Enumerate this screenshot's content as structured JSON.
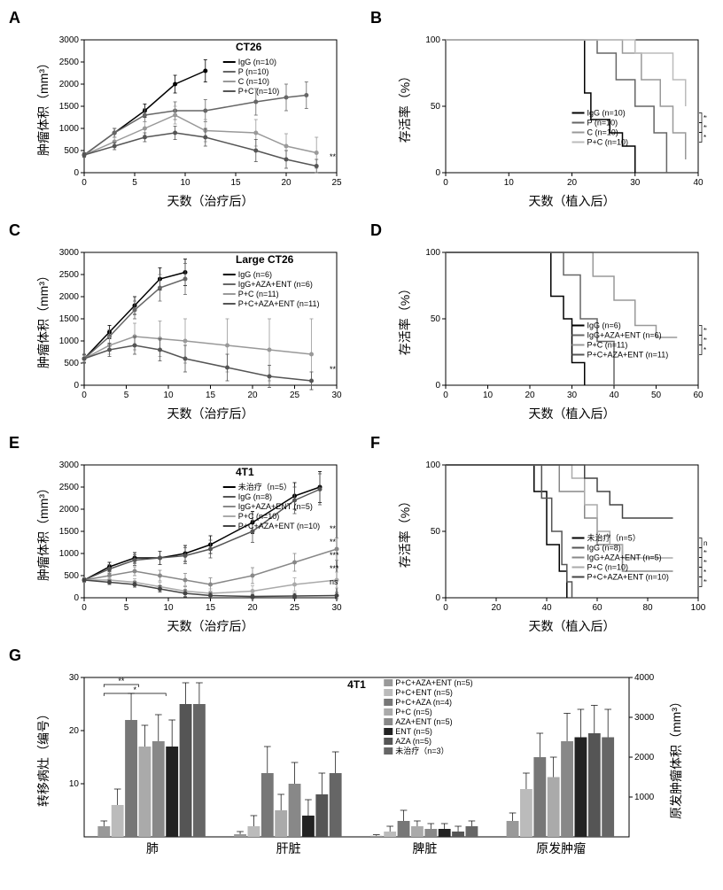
{
  "panels": {
    "A": {
      "label": "A",
      "title": "CT26",
      "type": "line",
      "xlabel": "天数（治疗后）",
      "ylabel": "肿瘤体积（mm³）",
      "xlim": [
        0,
        25
      ],
      "xtick_step": 5,
      "ylim": [
        0,
        3000
      ],
      "ytick_step": 500,
      "series": [
        {
          "name": "IgG (n=10)",
          "color": "#000000",
          "x": [
            0,
            3,
            6,
            9,
            12
          ],
          "y": [
            400,
            900,
            1400,
            2000,
            2300
          ],
          "err": [
            50,
            100,
            150,
            200,
            250
          ]
        },
        {
          "name": "P (n=10)",
          "color": "#666666",
          "x": [
            0,
            3,
            6,
            9,
            12,
            17,
            20,
            22
          ],
          "y": [
            400,
            900,
            1300,
            1400,
            1400,
            1600,
            1700,
            1750
          ],
          "err": [
            50,
            100,
            150,
            200,
            250,
            300,
            300,
            300
          ]
        },
        {
          "name": "C (n=10)",
          "color": "#999999",
          "x": [
            0,
            3,
            6,
            9,
            12,
            17,
            20,
            23
          ],
          "y": [
            400,
            700,
            1000,
            1300,
            950,
            900,
            600,
            450
          ],
          "err": [
            50,
            100,
            150,
            200,
            250,
            300,
            280,
            350
          ]
        },
        {
          "name": "P+C (n=10)",
          "color": "#555555",
          "x": [
            0,
            3,
            6,
            9,
            12,
            17,
            20,
            23
          ],
          "y": [
            400,
            600,
            800,
            900,
            800,
            500,
            300,
            150
          ],
          "err": [
            50,
            80,
            100,
            150,
            200,
            250,
            200,
            150
          ]
        }
      ],
      "sig_marks": [
        "**"
      ]
    },
    "B": {
      "label": "B",
      "type": "survival",
      "xlabel": "天数（植入后）",
      "ylabel": "存活率（%）",
      "xlim": [
        0,
        40
      ],
      "xtick_step": 10,
      "ylim": [
        0,
        100
      ],
      "ytick_step": 50,
      "series": [
        {
          "name": "IgG (n=10)",
          "color": "#000000",
          "steps": [
            [
              0,
              100
            ],
            [
              18,
              100
            ],
            [
              22,
              60
            ],
            [
              23,
              40
            ],
            [
              26,
              30
            ],
            [
              28,
              20
            ],
            [
              30,
              0
            ]
          ]
        },
        {
          "name": "P (n=10)",
          "color": "#666666",
          "steps": [
            [
              0,
              100
            ],
            [
              20,
              100
            ],
            [
              24,
              90
            ],
            [
              27,
              70
            ],
            [
              30,
              50
            ],
            [
              33,
              30
            ],
            [
              35,
              0
            ]
          ]
        },
        {
          "name": "C (n=10)",
          "color": "#999999",
          "steps": [
            [
              0,
              100
            ],
            [
              26,
              100
            ],
            [
              28,
              90
            ],
            [
              31,
              70
            ],
            [
              34,
              50
            ],
            [
              36,
              30
            ],
            [
              38,
              10
            ]
          ]
        },
        {
          "name": "P+C (n=10)",
          "color": "#bbbbbb",
          "steps": [
            [
              0,
              100
            ],
            [
              28,
              100
            ],
            [
              30,
              90
            ],
            [
              34,
              90
            ],
            [
              36,
              70
            ],
            [
              38,
              50
            ]
          ]
        }
      ],
      "sig_marks": [
        "***",
        "***",
        "*"
      ]
    },
    "C": {
      "label": "C",
      "title": "Large CT26",
      "type": "line",
      "xlabel": "天数（治疗后）",
      "ylabel": "肿瘤体积（mm³）",
      "xlim": [
        0,
        30
      ],
      "xtick_step": 5,
      "ylim": [
        0,
        3000
      ],
      "ytick_step": 500,
      "series": [
        {
          "name": "IgG (n=6)",
          "color": "#000000",
          "x": [
            0,
            3,
            6,
            9,
            12
          ],
          "y": [
            600,
            1200,
            1800,
            2400,
            2550
          ],
          "err": [
            100,
            150,
            200,
            250,
            300
          ]
        },
        {
          "name": "IgG+AZA+ENT (n=6)",
          "color": "#666666",
          "x": [
            0,
            3,
            6,
            9,
            12
          ],
          "y": [
            600,
            1100,
            1700,
            2200,
            2400
          ],
          "err": [
            100,
            150,
            200,
            300,
            350
          ]
        },
        {
          "name": "P+C (n=11)",
          "color": "#999999",
          "x": [
            0,
            3,
            6,
            9,
            12,
            17,
            22,
            27
          ],
          "y": [
            600,
            900,
            1100,
            1050,
            1000,
            900,
            800,
            700
          ],
          "err": [
            80,
            200,
            300,
            400,
            500,
            600,
            700,
            800
          ]
        },
        {
          "name": "P+C+AZA+ENT (n=11)",
          "color": "#555555",
          "x": [
            0,
            3,
            6,
            9,
            12,
            17,
            22,
            27
          ],
          "y": [
            600,
            800,
            900,
            800,
            600,
            400,
            200,
            100
          ],
          "err": [
            80,
            150,
            200,
            250,
            300,
            300,
            250,
            200
          ]
        }
      ],
      "sig_marks": [
        "**"
      ]
    },
    "D": {
      "label": "D",
      "type": "survival",
      "xlabel": "天数（植入后）",
      "ylabel": "存活率（%）",
      "xlim": [
        0,
        60
      ],
      "xtick_step": 10,
      "ylim": [
        0,
        100
      ],
      "ytick_step": 50,
      "series": [
        {
          "name": "IgG (n=6)",
          "color": "#000000",
          "steps": [
            [
              0,
              100
            ],
            [
              20,
              100
            ],
            [
              25,
              67
            ],
            [
              28,
              50
            ],
            [
              30,
              17
            ],
            [
              33,
              0
            ]
          ]
        },
        {
          "name": "IgG+AZA+ENT (n=6)",
          "color": "#666666",
          "steps": [
            [
              0,
              100
            ],
            [
              22,
              100
            ],
            [
              28,
              83
            ],
            [
              32,
              50
            ],
            [
              36,
              33
            ],
            [
              40,
              0
            ]
          ]
        },
        {
          "name": "P+C (n=11)",
          "color": "#999999",
          "steps": [
            [
              0,
              100
            ],
            [
              30,
              100
            ],
            [
              35,
              82
            ],
            [
              40,
              64
            ],
            [
              45,
              45
            ],
            [
              50,
              36
            ],
            [
              55,
              36
            ]
          ]
        },
        {
          "name": "P+C+AZA+ENT (n=11)",
          "color": "#555555",
          "steps": [
            [
              0,
              100
            ],
            [
              55,
              100
            ]
          ]
        }
      ],
      "sig_marks": [
        "***",
        "***",
        "*"
      ]
    },
    "E": {
      "label": "E",
      "title": "4T1",
      "type": "line",
      "xlabel": "天数（治疗后）",
      "ylabel": "肿瘤体积（mm³）",
      "xlim": [
        0,
        30
      ],
      "xtick_step": 5,
      "ylim": [
        0,
        3000
      ],
      "ytick_step": 500,
      "series": [
        {
          "name": "未治疗（n=5）",
          "color": "#000000",
          "x": [
            0,
            3,
            6,
            9,
            12,
            15,
            20,
            25,
            28
          ],
          "y": [
            400,
            700,
            900,
            900,
            1000,
            1200,
            1700,
            2300,
            2500
          ],
          "err": [
            50,
            100,
            120,
            150,
            180,
            200,
            250,
            300,
            350
          ]
        },
        {
          "name": "IgG (n=8)",
          "color": "#555555",
          "x": [
            0,
            3,
            6,
            9,
            12,
            15,
            20,
            25,
            28
          ],
          "y": [
            400,
            650,
            850,
            900,
            950,
            1100,
            1500,
            2200,
            2450
          ],
          "err": [
            50,
            100,
            120,
            150,
            180,
            200,
            250,
            300,
            350
          ]
        },
        {
          "name": "IgG+AZA+ENT (n=5)",
          "color": "#888888",
          "x": [
            0,
            3,
            6,
            9,
            12,
            15,
            20,
            25,
            30
          ],
          "y": [
            400,
            500,
            600,
            500,
            400,
            300,
            500,
            800,
            1100
          ],
          "err": [
            50,
            80,
            100,
            120,
            150,
            150,
            180,
            200,
            250
          ]
        },
        {
          "name": "P+C (n=10)",
          "color": "#aaaaaa",
          "x": [
            0,
            3,
            6,
            9,
            12,
            15,
            20,
            25,
            30
          ],
          "y": [
            400,
            400,
            350,
            250,
            150,
            100,
            150,
            300,
            400
          ],
          "err": [
            50,
            60,
            80,
            100,
            120,
            100,
            120,
            150,
            180
          ]
        },
        {
          "name": "P+C+AZA+ENT (n=10)",
          "color": "#444444",
          "x": [
            0,
            3,
            6,
            9,
            12,
            15,
            20,
            25,
            30
          ],
          "y": [
            400,
            350,
            300,
            200,
            100,
            50,
            30,
            40,
            50
          ],
          "err": [
            40,
            50,
            60,
            70,
            80,
            60,
            50,
            60,
            70
          ]
        }
      ],
      "sig_marks": [
        "ns",
        "***",
        "***",
        "**",
        "**"
      ]
    },
    "F": {
      "label": "F",
      "type": "survival",
      "xlabel": "天数（植入后）",
      "ylabel": "存活率（%）",
      "xlim": [
        0,
        100
      ],
      "xtick_step": 20,
      "ylim": [
        0,
        100
      ],
      "ytick_step": 50,
      "series": [
        {
          "name": "未治疗（n=5）",
          "color": "#000000",
          "steps": [
            [
              0,
              100
            ],
            [
              30,
              100
            ],
            [
              35,
              80
            ],
            [
              40,
              40
            ],
            [
              45,
              20
            ],
            [
              48,
              0
            ]
          ]
        },
        {
          "name": "IgG (n=8)",
          "color": "#555555",
          "steps": [
            [
              0,
              100
            ],
            [
              32,
              100
            ],
            [
              38,
              75
            ],
            [
              42,
              50
            ],
            [
              46,
              25
            ],
            [
              48,
              12
            ],
            [
              50,
              0
            ]
          ]
        },
        {
          "name": "IgG+AZA+ENT (n=5)",
          "color": "#888888",
          "steps": [
            [
              0,
              100
            ],
            [
              40,
              100
            ],
            [
              45,
              80
            ],
            [
              55,
              60
            ],
            [
              60,
              40
            ],
            [
              65,
              40
            ],
            [
              70,
              20
            ],
            [
              90,
              20
            ]
          ]
        },
        {
          "name": "P+C (n=10)",
          "color": "#aaaaaa",
          "steps": [
            [
              0,
              100
            ],
            [
              42,
              100
            ],
            [
              50,
              90
            ],
            [
              55,
              70
            ],
            [
              60,
              50
            ],
            [
              65,
              40
            ],
            [
              70,
              30
            ],
            [
              90,
              30
            ]
          ]
        },
        {
          "name": "P+C+AZA+ENT (n=10)",
          "color": "#444444",
          "steps": [
            [
              0,
              100
            ],
            [
              50,
              100
            ],
            [
              55,
              90
            ],
            [
              60,
              80
            ],
            [
              65,
              70
            ],
            [
              70,
              60
            ],
            [
              90,
              60
            ]
          ]
        }
      ],
      "sig_marks": [
        "ns",
        "***",
        "***",
        "*",
        "***"
      ]
    },
    "G": {
      "label": "G",
      "title": "4T1",
      "type": "grouped-bar",
      "xlabel": "",
      "ylabel_left": "转移病灶（编号）",
      "ylabel_right": "原发肿瘤体积（mm³）",
      "ylim_left": [
        0,
        30
      ],
      "ytick_left": [
        10,
        20,
        30
      ],
      "ylim_right": [
        0,
        4000
      ],
      "ytick_right": [
        1000,
        2000,
        3000,
        4000
      ],
      "categories": [
        "肺",
        "肝脏",
        "脾脏",
        "原发肿瘤"
      ],
      "groups": [
        {
          "name": "P+C+AZA+ENT (n=5)",
          "color": "#999999",
          "vals": [
            2,
            0.5,
            0.2,
            400
          ]
        },
        {
          "name": "P+C+ENT (n=5)",
          "color": "#bbbbbb",
          "vals": [
            6,
            2,
            1,
            1200
          ]
        },
        {
          "name": "P+C+AZA (n=4)",
          "color": "#777777",
          "vals": [
            22,
            12,
            3,
            2000
          ]
        },
        {
          "name": "P+C (n=5)",
          "color": "#aaaaaa",
          "vals": [
            17,
            5,
            2,
            1500
          ]
        },
        {
          "name": "AZA+ENT (n=5)",
          "color": "#888888",
          "vals": [
            18,
            10,
            1.5,
            2400
          ]
        },
        {
          "name": "ENT (n=5)",
          "color": "#222222",
          "vals": [
            17,
            4,
            1.5,
            2500
          ]
        },
        {
          "name": "AZA (n=5)",
          "color": "#555555",
          "vals": [
            25,
            8,
            1,
            2600
          ]
        },
        {
          "name": "未治疗（n=3）",
          "color": "#666666",
          "vals": [
            25,
            12,
            2,
            2500
          ]
        }
      ],
      "errors": [
        [
          1,
          0.5,
          0.2,
          200
        ],
        [
          3,
          2,
          1,
          400
        ],
        [
          5,
          5,
          2,
          600
        ],
        [
          4,
          3,
          1,
          500
        ],
        [
          5,
          4,
          1,
          700
        ],
        [
          5,
          3,
          1,
          700
        ],
        [
          4,
          4,
          1,
          700
        ],
        [
          4,
          4,
          1,
          700
        ]
      ],
      "sig_marks": [
        "**",
        "*"
      ]
    }
  }
}
